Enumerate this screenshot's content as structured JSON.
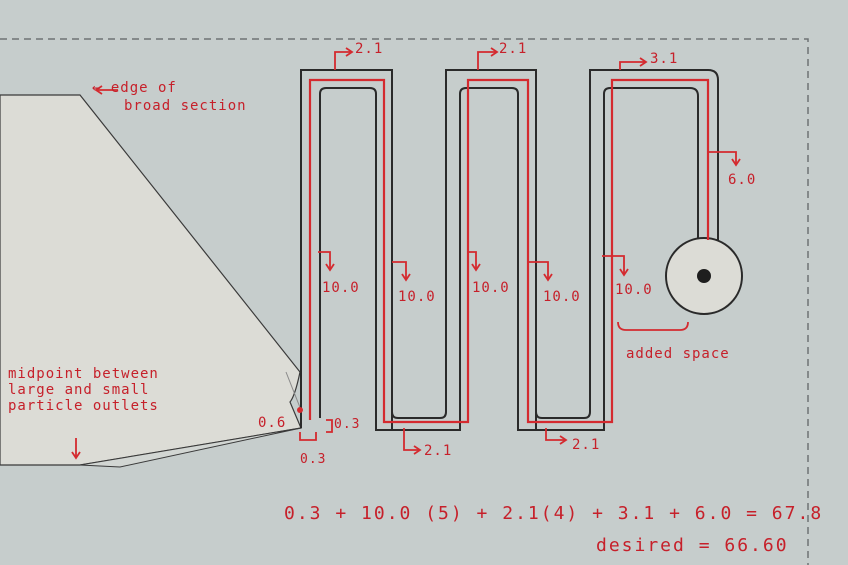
{
  "colors": {
    "background": "#c6cdcc",
    "broad_section": "#dcdcd6",
    "channel_outline": "#2a2a2a",
    "annotation_red": "#d42a2f",
    "dashed_border": "#6e7375"
  },
  "annotations": {
    "edge_label_line1": "← edge of",
    "edge_label_line2": "broad section",
    "midpoint_line1": "midpoint between",
    "midpoint_line2": "large and small",
    "midpoint_line3": "particle outlets",
    "added_space": "added space"
  },
  "segment_lengths": {
    "start": "0.6",
    "first_small": "0.3",
    "first_small_below": "0.3",
    "top_1": "2.1",
    "top_2": "2.1",
    "top_3": "3.1",
    "bottom_1": "2.1",
    "bottom_2": "2.1",
    "vertical_1": "10.0",
    "vertical_2": "10.0",
    "vertical_3": "10.0",
    "vertical_4": "10.0",
    "vertical_5": "10.0",
    "final_leg": "6.0"
  },
  "calculation": {
    "equation": "0.3 + 10.0 (5) + 2.1(4) + 3.1 + 6.0 = 67.8",
    "desired": "desired = 66.60"
  }
}
